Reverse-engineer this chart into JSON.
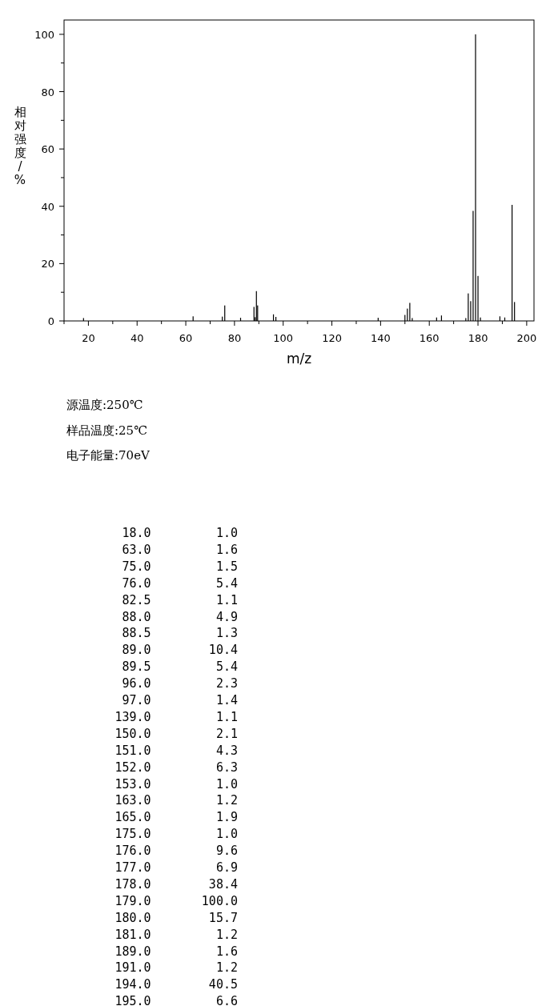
{
  "chart_data": [
    {
      "type": "bar",
      "xlabel": "m/z",
      "ylabel": "相对强度/%",
      "x": [
        18.0,
        63.0,
        75.0,
        76.0,
        82.5,
        88.0,
        88.5,
        89.0,
        89.5,
        96.0,
        97.0,
        139.0,
        150.0,
        151.0,
        152.0,
        153.0,
        163.0,
        165.0,
        175.0,
        176.0,
        177.0,
        178.0,
        179.0,
        180.0,
        181.0,
        189.0,
        191.0,
        194.0,
        195.0
      ],
      "values": [
        1.0,
        1.6,
        1.5,
        5.4,
        1.1,
        4.9,
        1.3,
        10.4,
        5.4,
        2.3,
        1.4,
        1.1,
        2.1,
        4.3,
        6.3,
        1.0,
        1.2,
        1.9,
        1.0,
        9.6,
        6.9,
        38.4,
        100.0,
        15.7,
        1.2,
        1.6,
        1.2,
        40.5,
        6.6
      ],
      "color": "#000000",
      "xlim": [
        10,
        203
      ],
      "ylim": [
        0,
        105
      ],
      "xticks": [
        {
          "value": 10,
          "label": null
        },
        20,
        {
          "value": 30,
          "label": null
        },
        40,
        {
          "value": 50,
          "label": null
        },
        60,
        {
          "value": 70,
          "label": null
        },
        80,
        {
          "value": 90,
          "label": null
        },
        100,
        {
          "value": 110,
          "label": null
        },
        120,
        {
          "value": 130,
          "label": null
        },
        140,
        {
          "value": 150,
          "label": null
        },
        160,
        {
          "value": 170,
          "label": null
        },
        180,
        {
          "value": 190,
          "label": null
        },
        200
      ],
      "yticks": [
        0,
        {
          "value": 10,
          "label": null
        },
        20,
        {
          "value": 30,
          "label": null
        },
        40,
        {
          "value": 50,
          "label": null
        },
        60,
        {
          "value": 70,
          "label": null
        },
        80,
        {
          "value": 90,
          "label": null
        },
        100
      ],
      "annotations": [
        "源温度:250℃",
        "样品温度:25℃",
        "电子能量:70eV"
      ]
    },
    {
      "type": "other",
      "annotations": [
        "18.0         1.0",
        "63.0         1.6",
        "75.0         1.5",
        "76.0         5.4",
        "82.5         1.1",
        "88.0         4.9",
        "88.5         1.3",
        "89.0        10.4",
        "89.5         5.4",
        "96.0         2.3",
        "97.0         1.4",
        "139.0         1.1",
        "150.0         2.1",
        "151.0         4.3",
        "152.0         6.3",
        "153.0         1.0",
        "163.0         1.2",
        "165.0         1.9",
        "175.0         1.0",
        "176.0         9.6",
        "177.0         6.9",
        "178.0        38.4",
        "179.0       100.0",
        "180.0        15.7",
        "181.0         1.2",
        "189.0         1.6",
        "191.0         1.2",
        "194.0        40.5",
        "195.0         6.6"
      ]
    }
  ]
}
